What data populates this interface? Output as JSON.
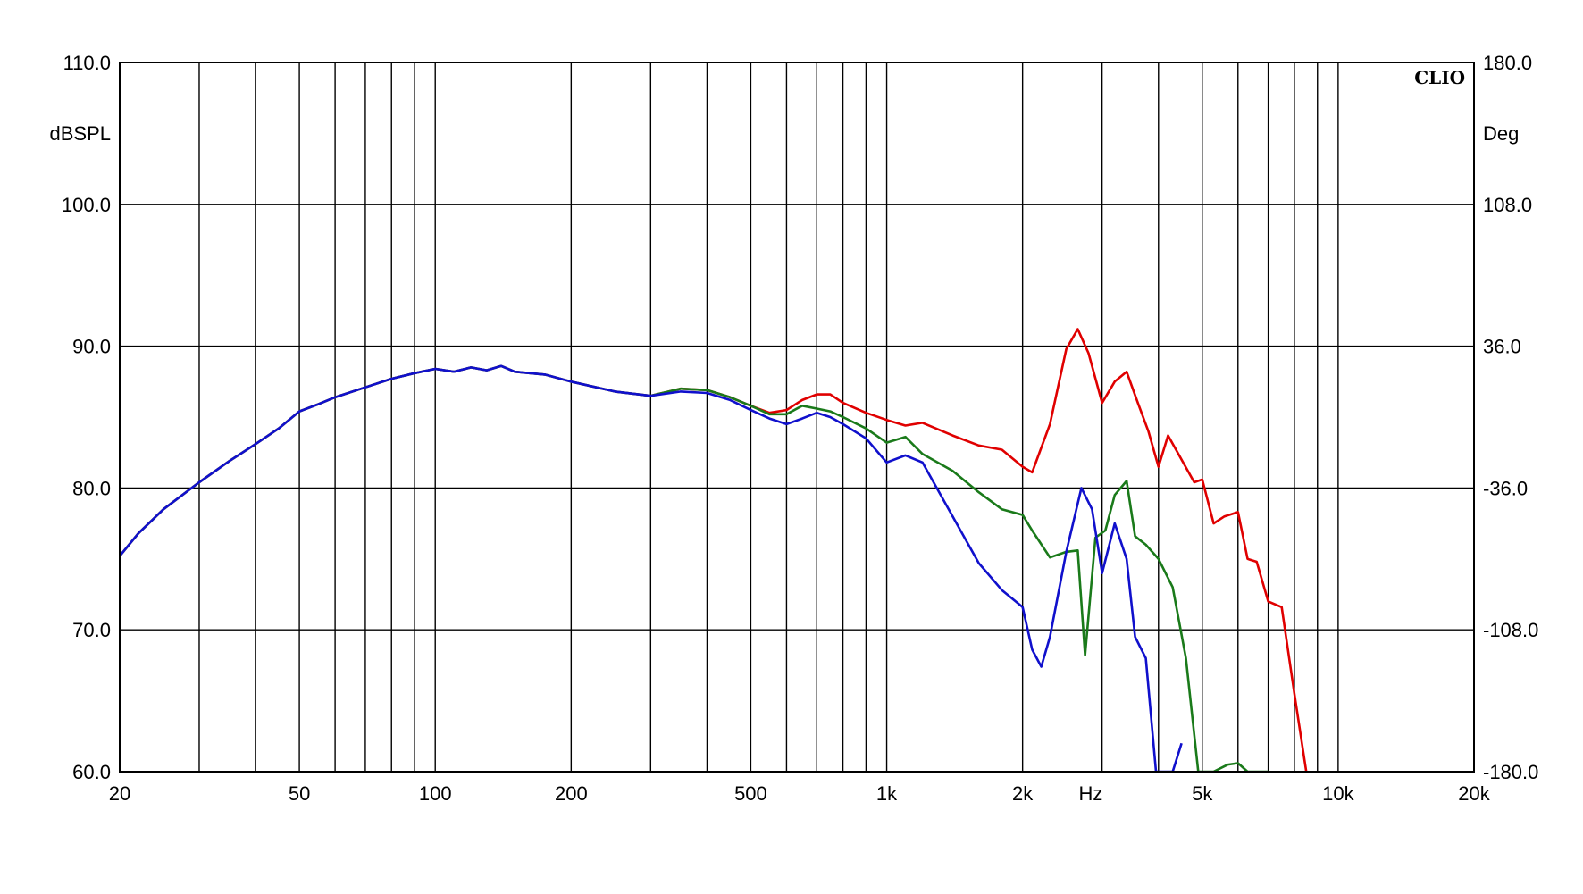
{
  "chart_data": {
    "type": "line",
    "title": "",
    "brand_label": "CLIO",
    "xlabel": "Hz",
    "ylabel": "dBSPL",
    "y2label": "Deg",
    "x_scale": "log",
    "xlim": [
      20,
      20000
    ],
    "ylim": [
      60,
      110
    ],
    "y2lim": [
      -180,
      180
    ],
    "grid": true,
    "x_ticks": [
      {
        "value": 20,
        "label": "20"
      },
      {
        "value": 50,
        "label": "50"
      },
      {
        "value": 100,
        "label": "100"
      },
      {
        "value": 200,
        "label": "200"
      },
      {
        "value": 500,
        "label": "500"
      },
      {
        "value": 1000,
        "label": "1k"
      },
      {
        "value": 2000,
        "label": "2k"
      },
      {
        "value": 5000,
        "label": "5k"
      },
      {
        "value": 10000,
        "label": "10k"
      },
      {
        "value": 20000,
        "label": "20k"
      }
    ],
    "x_gridlines": [
      20,
      30,
      40,
      50,
      60,
      70,
      80,
      90,
      100,
      200,
      300,
      400,
      500,
      600,
      700,
      800,
      900,
      1000,
      2000,
      3000,
      4000,
      5000,
      6000,
      7000,
      8000,
      9000,
      10000,
      20000
    ],
    "y_ticks": [
      {
        "value": 60,
        "label": "60.0"
      },
      {
        "value": 70,
        "label": "70.0"
      },
      {
        "value": 80,
        "label": "80.0"
      },
      {
        "value": 90,
        "label": "90.0"
      },
      {
        "value": 100,
        "label": "100.0"
      },
      {
        "value": 110,
        "label": "110.0"
      }
    ],
    "y2_ticks": [
      {
        "value": -180,
        "label": "-180.0"
      },
      {
        "value": -108,
        "label": "-108.0"
      },
      {
        "value": -36,
        "label": "-36.0"
      },
      {
        "value": 36,
        "label": "36.0"
      },
      {
        "value": 108,
        "label": "108.0"
      },
      {
        "value": 180,
        "label": "180.0"
      }
    ],
    "series": [
      {
        "color": "#e00000",
        "x": [
          20,
          22,
          25,
          30,
          35,
          40,
          45,
          50,
          55,
          60,
          70,
          80,
          90,
          100,
          110,
          120,
          130,
          140,
          150,
          175,
          200,
          250,
          300,
          350,
          400,
          450,
          500,
          550,
          600,
          650,
          700,
          750,
          800,
          900,
          1000,
          1100,
          1200,
          1400,
          1600,
          1800,
          2000,
          2100,
          2300,
          2500,
          2650,
          2800,
          3000,
          3200,
          3400,
          3600,
          3800,
          4000,
          4200,
          4500,
          4800,
          5000,
          5300,
          5600,
          6000,
          6300,
          6600,
          7000,
          7500,
          8000,
          8500
        ],
        "y": [
          75.2,
          76.8,
          78.5,
          80.4,
          81.9,
          83.1,
          84.2,
          85.4,
          85.9,
          86.4,
          87.1,
          87.7,
          88.1,
          88.4,
          88.2,
          88.5,
          88.3,
          88.6,
          88.2,
          88,
          87.5,
          86.8,
          86.5,
          87,
          86.9,
          86.4,
          85.8,
          85.3,
          85.5,
          86.2,
          86.6,
          86.6,
          86,
          85.3,
          84.8,
          84.4,
          84.6,
          83.7,
          83,
          82.7,
          81.5,
          81.1,
          84.5,
          89.8,
          91.2,
          89.5,
          86,
          87.5,
          88.2,
          86,
          84,
          81.5,
          83.7,
          82,
          80.4,
          80.6,
          77.5,
          78,
          78.3,
          75,
          74.8,
          72,
          71.6,
          65.5,
          60
        ]
      },
      {
        "color": "#1a7a1a",
        "x": [
          20,
          22,
          25,
          30,
          35,
          40,
          45,
          50,
          55,
          60,
          70,
          80,
          90,
          100,
          110,
          120,
          130,
          140,
          150,
          175,
          200,
          250,
          300,
          350,
          400,
          450,
          500,
          550,
          600,
          650,
          700,
          750,
          800,
          900,
          1000,
          1100,
          1200,
          1400,
          1600,
          1800,
          2000,
          2100,
          2300,
          2500,
          2650,
          2750,
          2900,
          3050,
          3200,
          3400,
          3550,
          3750,
          4000,
          4300,
          4600,
          4900,
          5300,
          5700,
          6000,
          6300,
          6700,
          7000
        ],
        "y": [
          75.2,
          76.8,
          78.5,
          80.4,
          81.9,
          83.1,
          84.2,
          85.4,
          85.9,
          86.4,
          87.1,
          87.7,
          88.1,
          88.4,
          88.2,
          88.5,
          88.3,
          88.6,
          88.2,
          88,
          87.5,
          86.8,
          86.5,
          87,
          86.9,
          86.4,
          85.8,
          85.2,
          85.2,
          85.8,
          85.6,
          85.4,
          85,
          84.2,
          83.2,
          83.6,
          82.4,
          81.2,
          79.7,
          78.5,
          78.1,
          77,
          75.1,
          75.5,
          75.6,
          68.2,
          76.5,
          77,
          79.5,
          80.5,
          76.6,
          76,
          75,
          73,
          68,
          60,
          58,
          60.5,
          60.6,
          60,
          60,
          60
        ]
      },
      {
        "color": "#1010cc",
        "x": [
          20,
          22,
          25,
          30,
          35,
          40,
          45,
          50,
          55,
          60,
          70,
          80,
          90,
          100,
          110,
          120,
          130,
          140,
          150,
          175,
          200,
          250,
          300,
          350,
          400,
          450,
          500,
          550,
          600,
          650,
          700,
          750,
          800,
          900,
          1000,
          1100,
          1200,
          1400,
          1600,
          1800,
          2000,
          2100,
          2200,
          2300,
          2500,
          2700,
          2850,
          3000,
          3200,
          3400,
          3550,
          3750,
          3950,
          4100,
          4300,
          4500
        ],
        "y": [
          75.2,
          76.8,
          78.5,
          80.4,
          81.9,
          83.1,
          84.2,
          85.4,
          85.9,
          86.4,
          87.1,
          87.7,
          88.1,
          88.4,
          88.2,
          88.5,
          88.3,
          88.6,
          88.2,
          88,
          87.5,
          86.8,
          86.5,
          86.8,
          86.7,
          86.2,
          85.5,
          84.9,
          84.5,
          84.9,
          85.3,
          85,
          84.5,
          83.5,
          81.8,
          82.3,
          81.8,
          78,
          74.7,
          72.8,
          71.6,
          68.6,
          67.4,
          69.5,
          75.5,
          80,
          78.5,
          74,
          77.5,
          75,
          69.5,
          68,
          60,
          58,
          59.5,
          62
        ]
      }
    ]
  }
}
